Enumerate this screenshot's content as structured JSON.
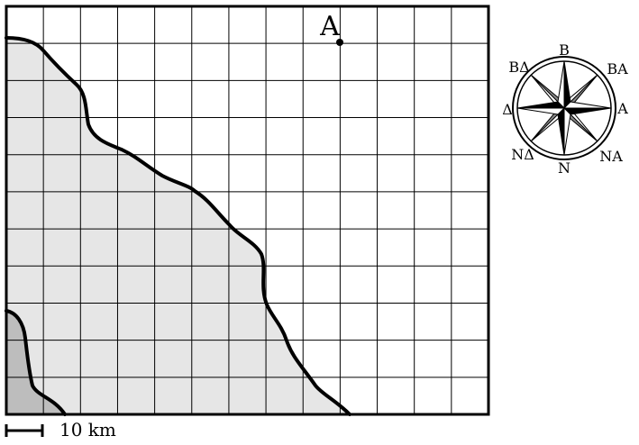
{
  "map": {
    "point_label": "A",
    "scale_label": "10 km",
    "colors": {
      "background": "#ffffff",
      "land_light": "#e6e6e6",
      "land_dark": "#bdbdbd",
      "grid": "#000000",
      "coast": "#000000"
    }
  },
  "compass": {
    "north": "B",
    "northeast": "BA",
    "east": "A",
    "southeast": "NA",
    "south": "N",
    "southwest": "NΔ",
    "west": "Δ",
    "northwest": "BΔ"
  }
}
